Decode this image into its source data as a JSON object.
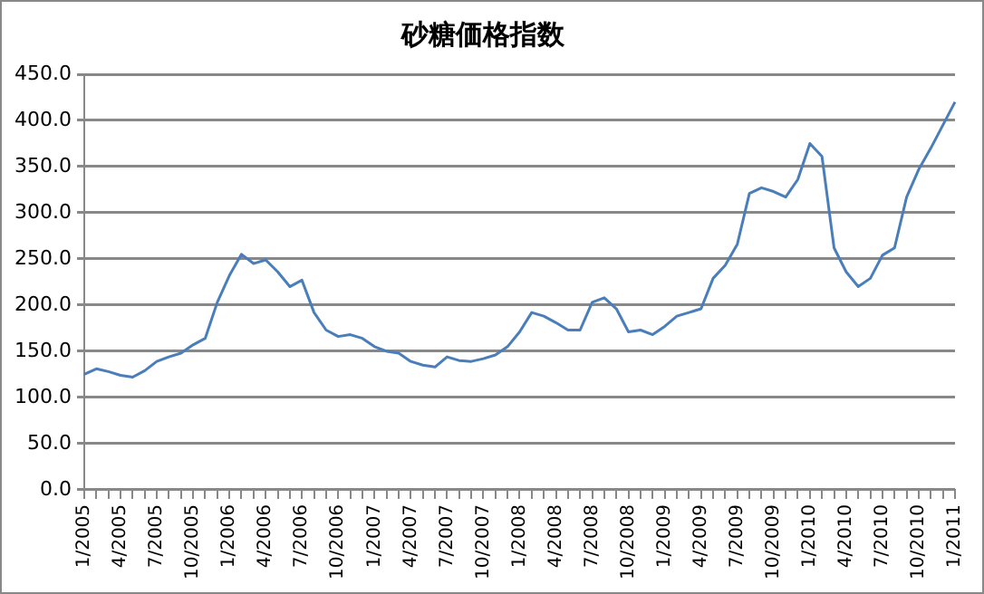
{
  "chart_data": {
    "type": "line",
    "title": "砂糖価格指数",
    "categories": [
      "1/2005",
      null,
      null,
      "4/2005",
      null,
      null,
      "7/2005",
      null,
      null,
      "10/2005",
      null,
      null,
      "1/2006",
      null,
      null,
      "4/2006",
      null,
      null,
      "7/2006",
      null,
      null,
      "10/2006",
      null,
      null,
      "1/2007",
      null,
      null,
      "4/2007",
      null,
      null,
      "7/2007",
      null,
      null,
      "10/2007",
      null,
      null,
      "1/2008",
      null,
      null,
      "4/2008",
      null,
      null,
      "7/2008",
      null,
      null,
      "10/2008",
      null,
      null,
      "1/2009",
      null,
      null,
      "4/2009",
      null,
      null,
      "7/2009",
      null,
      null,
      "10/2009",
      null,
      null,
      "1/2010",
      null,
      null,
      "4/2010",
      null,
      null,
      "7/2010",
      null,
      null,
      "10/2010",
      null,
      null,
      "1/2011"
    ],
    "series": [
      {
        "color": "#4a7ebb",
        "values": [
          125,
          131,
          128,
          124,
          122,
          129,
          139,
          144,
          148,
          157,
          164,
          203,
          232,
          255,
          245,
          249,
          236,
          220,
          227,
          192,
          173,
          166,
          168,
          164,
          155,
          150,
          148,
          139,
          135,
          133,
          144,
          140,
          139,
          142,
          146,
          155,
          171,
          192,
          188,
          181,
          173,
          173,
          203,
          208,
          196,
          171,
          173,
          168,
          177,
          188,
          192,
          196,
          229,
          243,
          266,
          321,
          327,
          323,
          317,
          336,
          375,
          361,
          262,
          236,
          220,
          229,
          254,
          262,
          317,
          347,
          370,
          395,
          420
        ]
      }
    ],
    "ylim": [
      0,
      450
    ],
    "yticks": [
      {
        "value": 0,
        "label": "0.0"
      },
      {
        "value": 50,
        "label": "50.0"
      },
      {
        "value": 100,
        "label": "100.0"
      },
      {
        "value": 150,
        "label": "150.0"
      },
      {
        "value": 200,
        "label": "200.0"
      },
      {
        "value": 250,
        "label": "250.0"
      },
      {
        "value": 300,
        "label": "300.0"
      },
      {
        "value": 350,
        "label": "350.0"
      },
      {
        "value": 400,
        "label": "400.0"
      },
      {
        "value": 450,
        "label": "450.0"
      }
    ],
    "grid": "y",
    "legend": false,
    "marker": "none",
    "line_style": "solid"
  }
}
